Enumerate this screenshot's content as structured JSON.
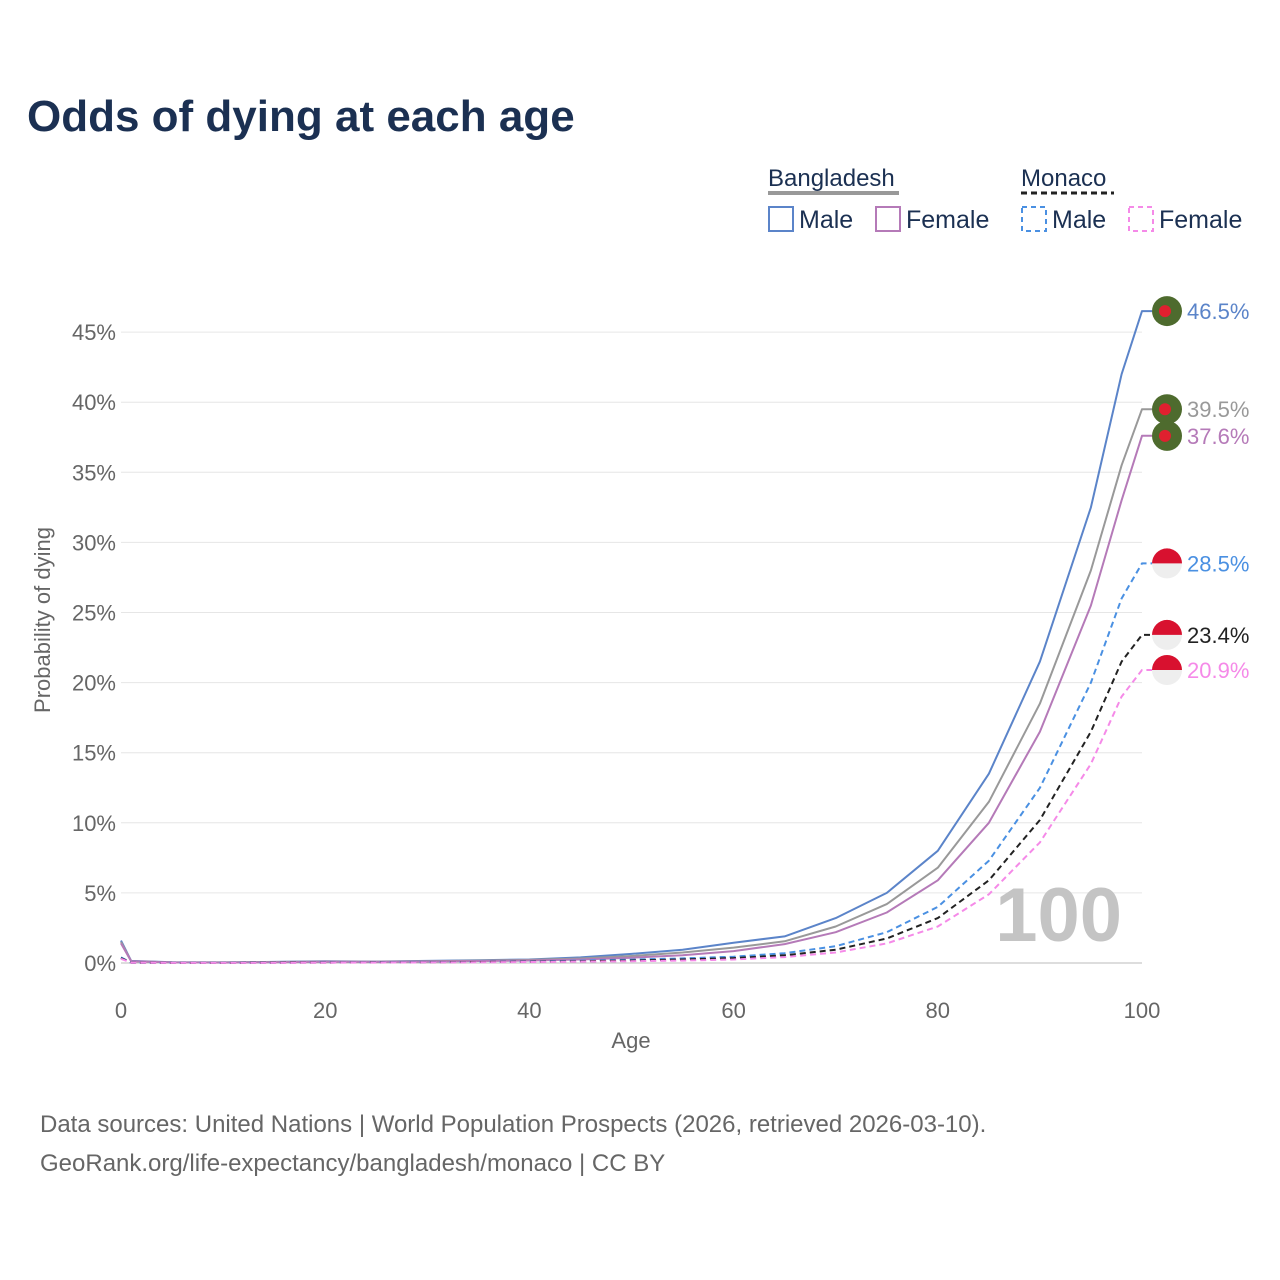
{
  "title": "Odds of dying at each age",
  "legend": {
    "groups": [
      {
        "label": "Bangladesh",
        "items": [
          "Male",
          "Female"
        ]
      },
      {
        "label": "Monaco",
        "items": [
          "Male",
          "Female"
        ]
      }
    ]
  },
  "watermark": "100",
  "source": {
    "line1": "Data sources: United Nations | World Population Prospects (2026, retrieved 2026-03-10).",
    "line2": "GeoRank.org/life-expectancy/bangladesh/monaco | CC BY"
  },
  "colors": {
    "bd_male": "#5b84c9",
    "bd_total": "#999999",
    "bd_female": "#b57ab8",
    "mc_male": "#4a90e2",
    "mc_total": "#222222",
    "mc_female": "#f58ae8",
    "grid": "#e6e6e6",
    "bd_flag_green": "#4e6b2e",
    "bd_flag_red": "#e0202f",
    "mc_flag_red": "#d8112f",
    "mc_flag_white": "#eeeeee"
  },
  "chart_data": {
    "type": "line",
    "title": "Odds of dying at each age",
    "xlabel": "Age",
    "ylabel": "Probability of dying",
    "xlim": [
      0,
      100
    ],
    "ylim": [
      -1.5,
      47
    ],
    "x_ticks": [
      "0",
      "20",
      "40",
      "60",
      "80",
      "100"
    ],
    "y_ticks": [
      "0%",
      "5%",
      "10%",
      "15%",
      "20%",
      "25%",
      "30%",
      "35%",
      "40%",
      "45%"
    ],
    "x": [
      0,
      1,
      5,
      10,
      15,
      20,
      25,
      30,
      35,
      40,
      45,
      50,
      55,
      60,
      65,
      70,
      75,
      80,
      85,
      90,
      95,
      98,
      100
    ],
    "series": [
      {
        "name": "Bangladesh Male",
        "key": "bd_male",
        "dash": false,
        "flag": "bangladesh",
        "end_label": "46.5%",
        "values": [
          1.6,
          0.15,
          0.05,
          0.04,
          0.08,
          0.12,
          0.1,
          0.15,
          0.2,
          0.25,
          0.4,
          0.65,
          0.95,
          1.45,
          1.9,
          3.2,
          5.0,
          8.0,
          13.5,
          21.5,
          32.5,
          42.0,
          46.5
        ]
      },
      {
        "name": "Bangladesh",
        "key": "bd_total",
        "dash": false,
        "flag": "bangladesh",
        "end_label": "39.5%",
        "values": [
          1.5,
          0.13,
          0.04,
          0.04,
          0.07,
          0.1,
          0.09,
          0.12,
          0.17,
          0.22,
          0.32,
          0.5,
          0.75,
          1.1,
          1.55,
          2.6,
          4.2,
          6.8,
          11.5,
          18.5,
          28.0,
          35.5,
          39.5
        ]
      },
      {
        "name": "Bangladesh Female",
        "key": "bd_female",
        "dash": false,
        "flag": "bangladesh",
        "end_label": "37.6%",
        "values": [
          1.4,
          0.12,
          0.04,
          0.03,
          0.06,
          0.09,
          0.08,
          0.1,
          0.14,
          0.18,
          0.25,
          0.38,
          0.55,
          0.85,
          1.35,
          2.2,
          3.6,
          5.9,
          10.0,
          16.5,
          25.5,
          33.0,
          37.6
        ]
      },
      {
        "name": "Monaco Male",
        "key": "mc_male",
        "dash": true,
        "flag": "monaco",
        "end_label": "28.5%",
        "values": [
          0.4,
          0.02,
          0.01,
          0.01,
          0.02,
          0.04,
          0.05,
          0.06,
          0.08,
          0.11,
          0.17,
          0.24,
          0.33,
          0.45,
          0.7,
          1.2,
          2.2,
          4.0,
          7.3,
          12.5,
          20.0,
          26.0,
          28.5
        ]
      },
      {
        "name": "Monaco",
        "key": "mc_total",
        "dash": true,
        "flag": "monaco",
        "end_label": "23.4%",
        "values": [
          0.35,
          0.02,
          0.01,
          0.01,
          0.02,
          0.03,
          0.04,
          0.05,
          0.07,
          0.09,
          0.13,
          0.18,
          0.25,
          0.35,
          0.55,
          0.95,
          1.75,
          3.2,
          5.9,
          10.2,
          16.5,
          21.5,
          23.4
        ]
      },
      {
        "name": "Monaco Female",
        "key": "mc_female",
        "dash": true,
        "flag": "monaco",
        "end_label": "20.9%",
        "values": [
          0.3,
          0.02,
          0.01,
          0.01,
          0.01,
          0.02,
          0.03,
          0.04,
          0.05,
          0.07,
          0.1,
          0.13,
          0.17,
          0.25,
          0.42,
          0.75,
          1.4,
          2.6,
          4.9,
          8.6,
          14.2,
          19.0,
          20.9
        ]
      }
    ]
  }
}
